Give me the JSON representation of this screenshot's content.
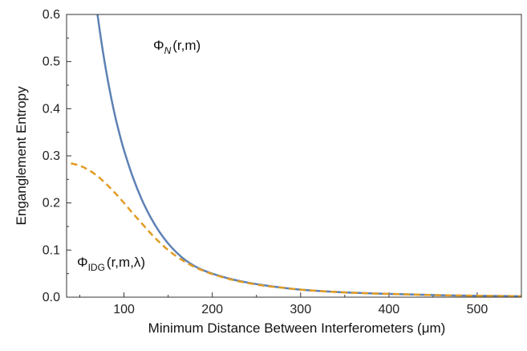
{
  "chart_data": {
    "type": "line",
    "title": "",
    "xlabel": "Minimum Distance Between Interferometers (μm)",
    "ylabel": "Enganglement Entropy",
    "xlim": [
      35,
      550
    ],
    "ylim": [
      0,
      0.6
    ],
    "xticks": [
      100,
      200,
      300,
      400,
      500
    ],
    "yticks": [
      0.0,
      0.1,
      0.2,
      0.3,
      0.4,
      0.5,
      0.6
    ],
    "xtick_labels": [
      "100",
      "200",
      "300",
      "400",
      "500"
    ],
    "ytick_labels": [
      "0.0",
      "0.1",
      "0.2",
      "0.3",
      "0.4",
      "0.5",
      "0.6"
    ],
    "grid": false,
    "series": [
      {
        "label_main": "Φ",
        "label_sub": "N",
        "label_args": "(r,m)",
        "color": "#5e81b5",
        "dash": "solid",
        "x": [
          70,
          75,
          80,
          85,
          90,
          95,
          100,
          110,
          120,
          130,
          140,
          150,
          160,
          170,
          180,
          190,
          200,
          220,
          240,
          260,
          280,
          300,
          340,
          380,
          420,
          460,
          500,
          550
        ],
        "y": [
          0.6,
          0.535,
          0.478,
          0.428,
          0.384,
          0.346,
          0.312,
          0.255,
          0.208,
          0.17,
          0.139,
          0.114,
          0.094,
          0.078,
          0.066,
          0.057,
          0.05,
          0.039,
          0.031,
          0.025,
          0.02,
          0.016,
          0.011,
          0.008,
          0.006,
          0.004,
          0.003,
          0.002
        ]
      },
      {
        "label_main": "Φ",
        "label_sub": "IDG",
        "label_args": "(r,m,λ)",
        "color": "#e19c24",
        "dash": "dashed",
        "x": [
          40,
          50,
          60,
          70,
          80,
          90,
          100,
          110,
          120,
          130,
          140,
          150,
          160,
          170,
          180,
          190,
          200,
          220,
          240,
          260,
          280,
          300,
          340,
          380,
          420,
          460,
          500,
          550
        ],
        "y": [
          0.284,
          0.279,
          0.27,
          0.257,
          0.24,
          0.221,
          0.2,
          0.178,
          0.157,
          0.136,
          0.117,
          0.1,
          0.086,
          0.074,
          0.064,
          0.056,
          0.049,
          0.038,
          0.03,
          0.024,
          0.02,
          0.016,
          0.011,
          0.008,
          0.006,
          0.004,
          0.003,
          0.002
        ]
      }
    ]
  }
}
